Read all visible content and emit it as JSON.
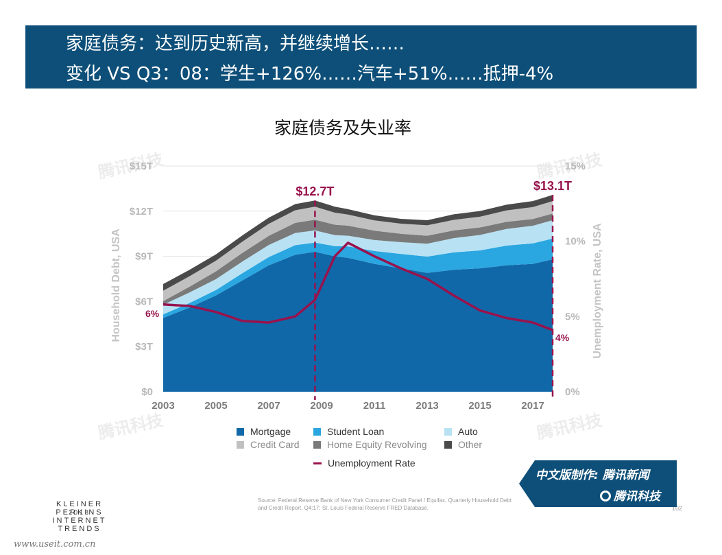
{
  "banner": {
    "line1": "家庭债务：达到历史新高，并继续增长……",
    "line2": "变化 VS Q3：08：学生+126%……汽车+51%……抵押-4%"
  },
  "chart_data": {
    "type": "area",
    "title": "家庭债务及失业率",
    "ylabel_left": "Household Debt, USA",
    "ylabel_right": "Unemployment Rate, USA",
    "x_ticks": [
      "2003",
      "2005",
      "2007",
      "2009",
      "2011",
      "2013",
      "2015",
      "2017"
    ],
    "y_left_ticks": [
      "$0",
      "$3T",
      "$6T",
      "$9T",
      "$12T",
      "$15T"
    ],
    "y_right_ticks": [
      "0%",
      "5%",
      "10%",
      "15%"
    ],
    "ylim_left": [
      0,
      15
    ],
    "ylim_right": [
      0,
      15
    ],
    "grid": true,
    "x": [
      2003.0,
      2004.0,
      2005.0,
      2006.0,
      2007.0,
      2008.0,
      2008.75,
      2009.5,
      2010.0,
      2011.0,
      2012.0,
      2013.0,
      2014.0,
      2015.0,
      2016.0,
      2017.0,
      2017.75
    ],
    "series": [
      {
        "name": "Mortgage",
        "color": "#1168a8",
        "values": [
          4.9,
          5.6,
          6.4,
          7.4,
          8.4,
          9.1,
          9.3,
          9.0,
          8.9,
          8.5,
          8.2,
          7.9,
          8.1,
          8.2,
          8.4,
          8.5,
          8.8
        ]
      },
      {
        "name": "Student Loan",
        "color": "#2aa6e0",
        "values": [
          0.24,
          0.3,
          0.36,
          0.48,
          0.55,
          0.64,
          0.61,
          0.68,
          0.76,
          0.85,
          0.96,
          1.08,
          1.16,
          1.19,
          1.31,
          1.36,
          1.38
        ]
      },
      {
        "name": "Auto",
        "color": "#b8e2f4",
        "values": [
          0.64,
          0.7,
          0.72,
          0.77,
          0.8,
          0.81,
          0.81,
          0.73,
          0.71,
          0.73,
          0.78,
          0.86,
          0.95,
          1.03,
          1.11,
          1.17,
          1.22
        ]
      },
      {
        "name": "Home Equity Revolving",
        "color": "#7a7a7a",
        "values": [
          0.24,
          0.38,
          0.52,
          0.58,
          0.61,
          0.67,
          0.71,
          0.69,
          0.67,
          0.62,
          0.56,
          0.53,
          0.51,
          0.5,
          0.47,
          0.45,
          0.44
        ]
      },
      {
        "name": "Credit Card",
        "color": "#c0c0c0",
        "values": [
          0.69,
          0.7,
          0.71,
          0.74,
          0.8,
          0.84,
          0.87,
          0.8,
          0.73,
          0.69,
          0.67,
          0.69,
          0.7,
          0.71,
          0.76,
          0.79,
          0.83
        ]
      },
      {
        "name": "Other",
        "color": "#4a4a4a",
        "values": [
          0.45,
          0.42,
          0.42,
          0.42,
          0.41,
          0.41,
          0.41,
          0.4,
          0.36,
          0.33,
          0.32,
          0.34,
          0.37,
          0.38,
          0.38,
          0.4,
          0.41
        ]
      }
    ],
    "line_series": {
      "name": "Unemployment Rate",
      "color": "#98134d",
      "values": [
        5.8,
        5.7,
        5.3,
        4.7,
        4.6,
        5.0,
        6.1,
        9.0,
        9.9,
        9.0,
        8.2,
        7.5,
        6.4,
        5.4,
        4.9,
        4.6,
        4.1
      ]
    },
    "annotations": [
      {
        "text": "$12.7T",
        "x": 2008.75
      },
      {
        "text": "$13.1T",
        "x": 2017.75
      },
      {
        "text": "6%",
        "x": 2003.0
      },
      {
        "text": "4%",
        "x": 2017.75
      }
    ],
    "dashed_markers_x": [
      2008.75,
      2017.75
    ]
  },
  "legend": [
    {
      "label": "Mortgage",
      "color": "#1168a8",
      "kind": "box",
      "grey": false
    },
    {
      "label": "Student Loan",
      "color": "#2aa6e0",
      "kind": "box",
      "grey": false
    },
    {
      "label": "Auto",
      "color": "#b8e2f4",
      "kind": "box",
      "grey": false
    },
    {
      "label": "Credit Card",
      "color": "#c0c0c0",
      "kind": "box",
      "grey": true
    },
    {
      "label": "Home Equity Revolving",
      "color": "#7a7a7a",
      "kind": "box",
      "grey": true
    },
    {
      "label": "Other",
      "color": "#4a4a4a",
      "kind": "box",
      "grey": true
    },
    {
      "label": "Unemployment Rate",
      "color": "#98134d",
      "kind": "line",
      "grey": false
    }
  ],
  "footer": {
    "brand_line1": "KLEINER PERKINS",
    "brand_line2": "2018",
    "brand_line3": "INTERNET TRENDS",
    "source": "Source: Federal Reserve Bank of New York Consumer Credit Panel / Equifax, Quarterly Household Debt and Credit Report, Q4:17; St. Louis Federal Reserve FRED Database.",
    "page": "102",
    "credit1": "中文版制作: 腾讯新闻",
    "credit2": "腾讯科技",
    "watermark": "腾讯科技",
    "url": "www.useit.com.cn"
  }
}
